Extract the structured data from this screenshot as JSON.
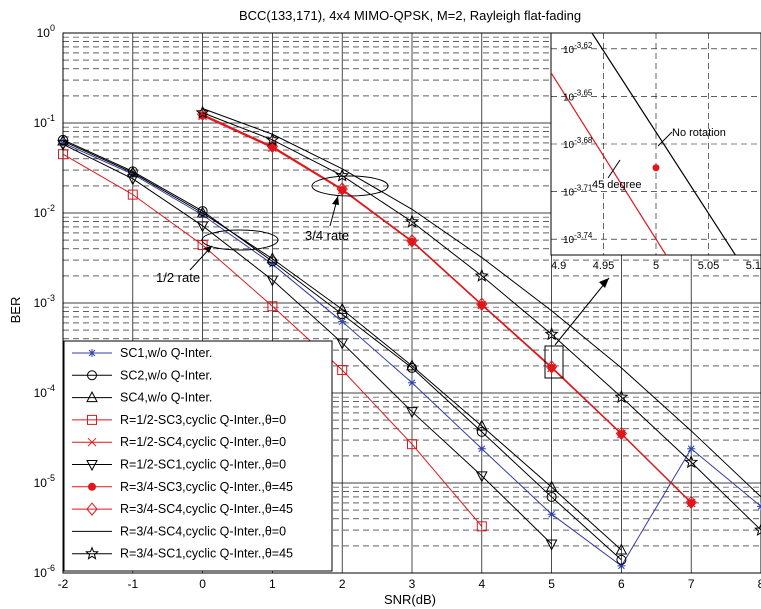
{
  "chart_data": {
    "type": "line",
    "title": "BCC(133,171), 4x4 MIMO-QPSK, M=2, Rayleigh flat-fading",
    "xlabel": "SNR(dB)",
    "ylabel": "BER",
    "xlim": [
      -2,
      8
    ],
    "ylim_log10": [
      -6,
      0
    ],
    "yscale": "log",
    "grid": true,
    "legend_position": "bottom-left",
    "x_ticks": [
      "-2",
      "-1",
      "0",
      "1",
      "2",
      "3",
      "4",
      "5",
      "6",
      "7",
      "8"
    ],
    "y_ticks": [
      {
        "base": "10",
        "exp": "0"
      },
      {
        "base": "10",
        "exp": "-1"
      },
      {
        "base": "10",
        "exp": "-2"
      },
      {
        "base": "10",
        "exp": "-3"
      },
      {
        "base": "10",
        "exp": "-4"
      },
      {
        "base": "10",
        "exp": "-5"
      },
      {
        "base": "10",
        "exp": "-6"
      }
    ],
    "series": [
      {
        "name": "SC1,w/o Q-Inter.",
        "color": "#2f3fa8",
        "marker": "asterisk",
        "x": [
          -2,
          -1,
          0,
          1,
          2,
          3,
          4,
          5,
          6,
          7,
          8
        ],
        "y": [
          0.06,
          0.027,
          0.0095,
          0.0027,
          0.00062,
          0.00013,
          2.4e-05,
          4.5e-06,
          1.2e-06,
          2.4e-05,
          5.5e-06
        ]
      },
      {
        "name": "SC2,w/o Q-Inter.",
        "color": "#000000",
        "marker": "circle",
        "x": [
          -2,
          -1,
          0,
          1,
          2,
          3,
          4,
          5,
          6
        ],
        "y": [
          0.065,
          0.029,
          0.0105,
          0.0029,
          0.00075,
          0.00019,
          3.7e-05,
          7e-06,
          1.4e-06
        ]
      },
      {
        "name": "SC4,w/o Q-Inter.",
        "color": "#000000",
        "marker": "triangle-up",
        "x": [
          -2,
          -1,
          0,
          1,
          2,
          3,
          4,
          5,
          6
        ],
        "y": [
          0.063,
          0.028,
          0.01,
          0.0031,
          0.00085,
          0.0002,
          4.3e-05,
          9e-06,
          1.8e-06
        ]
      },
      {
        "name": "R=1/2-SC3,cyclic Q-Inter.,θ=0",
        "color": "#e0161b",
        "marker": "square",
        "x": [
          -2,
          -1,
          0,
          1,
          2,
          3,
          4
        ],
        "y": [
          0.045,
          0.016,
          0.0044,
          0.00092,
          0.00018,
          2.7e-05,
          3.3e-06
        ]
      },
      {
        "name": "R=1/2-SC4,cyclic Q-Inter.,θ=0",
        "color": "#e0161b",
        "marker": "x",
        "x": [
          0,
          1,
          2,
          3,
          4,
          5,
          6,
          7
        ],
        "y": [
          0.12,
          0.053,
          0.018,
          0.0048,
          0.00095,
          0.00019,
          3.5e-05,
          6e-06
        ]
      },
      {
        "name": "R=1/2-SC1,cyclic Q-Inter.,θ=0",
        "color": "#000000",
        "marker": "triangle-down",
        "x": [
          -2,
          -1,
          0,
          1,
          2,
          3,
          4,
          5
        ],
        "y": [
          0.058,
          0.024,
          0.0072,
          0.0018,
          0.00036,
          6.2e-05,
          1.2e-05,
          2.1e-06
        ]
      },
      {
        "name": "R=3/4-SC3,cyclic Q-Inter.,θ=45",
        "color": "#e0161b",
        "marker": "dot",
        "x": [
          0,
          1,
          2,
          3,
          4,
          5,
          6,
          7
        ],
        "y": [
          0.122,
          0.054,
          0.018,
          0.0048,
          0.00095,
          0.00019,
          3.5e-05,
          6e-06
        ]
      },
      {
        "name": "R=3/4-SC4,cyclic Q-Inter.,θ=45",
        "color": "#e0161b",
        "marker": "diamond",
        "x": [
          0,
          1,
          2,
          3,
          4,
          5,
          6,
          7
        ],
        "y": [
          0.125,
          0.055,
          0.0185,
          0.0049,
          0.00097,
          0.000195,
          3.55e-05,
          6.1e-06
        ]
      },
      {
        "name": "R=3/4-SC4,cyclic Q-Inter.,θ=0",
        "color": "#000000",
        "marker": "none",
        "x": [
          0,
          1,
          2,
          3,
          4,
          5,
          6,
          7,
          8
        ],
        "y": [
          0.145,
          0.075,
          0.031,
          0.011,
          0.0032,
          0.00082,
          0.00019,
          3.8e-05,
          7e-06
        ]
      },
      {
        "name": "R=3/4-SC1,cyclic Q-Inter.,θ=45",
        "color": "#000000",
        "marker": "star",
        "x": [
          0,
          1,
          2,
          3,
          4,
          5,
          6,
          7,
          8
        ],
        "y": [
          0.13,
          0.065,
          0.026,
          0.008,
          0.002,
          0.00045,
          9e-05,
          1.7e-05,
          3e-06
        ]
      }
    ],
    "annotations": {
      "half_rate": "1/2  rate",
      "three_quarter_rate": "3/4 rate",
      "no_rotation": "No rotation",
      "degree45": "45 degree"
    },
    "inset": {
      "xlim": [
        4.9,
        5.1
      ],
      "x_ticks": [
        "4.9",
        "4.95",
        "5",
        "5.05",
        "5.1"
      ],
      "ylim_log10": [
        -3.75,
        -3.61
      ],
      "y_ticks": [
        {
          "base": "10",
          "exp": "-3.62"
        },
        {
          "base": "10",
          "exp": "-3.65"
        },
        {
          "base": "10",
          "exp": "-3.68"
        },
        {
          "base": "10",
          "exp": "-3.71"
        },
        {
          "base": "10",
          "exp": "-3.74"
        }
      ],
      "lines": [
        {
          "label": "No rotation",
          "color": "#000000",
          "x": [
            4.9,
            5.1
          ],
          "log10_y": [
            -3.57,
            -3.775
          ]
        },
        {
          "label": "45 degree",
          "color": "#e0161b",
          "x": [
            4.9,
            5.1
          ],
          "log10_y": [
            -3.635,
            -3.845
          ]
        }
      ],
      "marker_point": {
        "x": 5,
        "log10_y": -3.695
      }
    }
  }
}
